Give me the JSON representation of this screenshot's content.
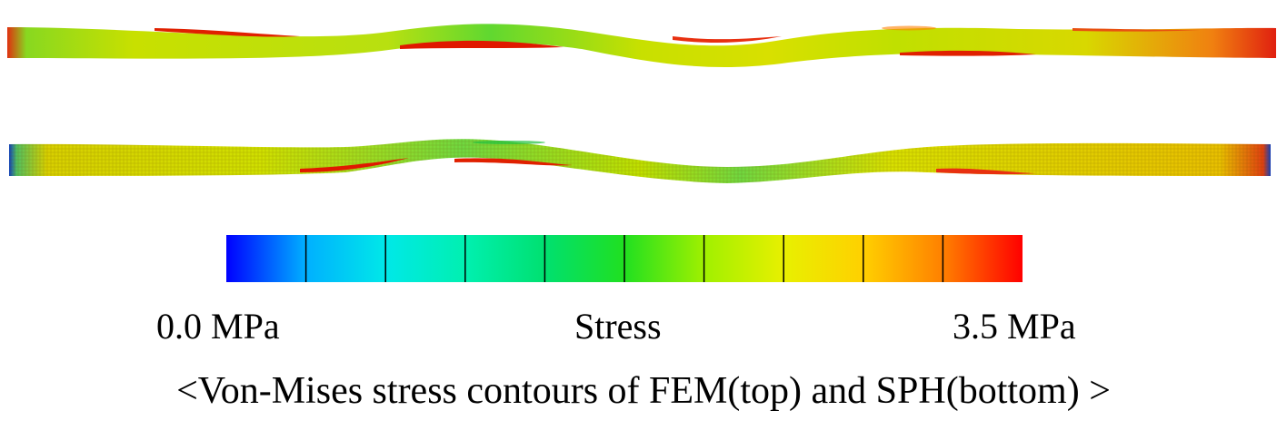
{
  "colorbar": {
    "min_label": "0.0 MPa",
    "title": "Stress",
    "max_label": "3.5 MPa",
    "min_value": 0.0,
    "max_value": 3.5,
    "unit": "MPa",
    "divisions": 10,
    "colormap": [
      "#0000ff",
      "#00b0ff",
      "#00e8e8",
      "#00f0b0",
      "#00e070",
      "#20e020",
      "#a0f000",
      "#e8f000",
      "#ffd000",
      "#ff8000",
      "#ff0000"
    ]
  },
  "caption": "<Von-Mises stress contours of FEM(top) and SPH(bottom) >"
}
